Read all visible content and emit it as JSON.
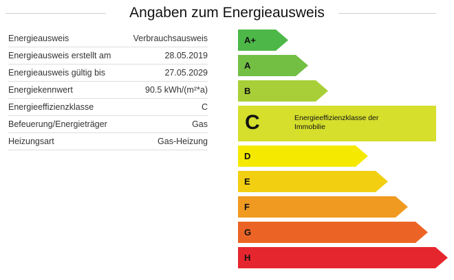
{
  "header": {
    "title": "Angaben zum Energieausweis"
  },
  "details": {
    "rows": [
      {
        "label": "Energieausweis",
        "value": "Verbrauchsausweis"
      },
      {
        "label": "Energieausweis erstellt am",
        "value": "28.05.2019"
      },
      {
        "label": "Energieausweis gültig bis",
        "value": "27.05.2029"
      },
      {
        "label": "Energiekennwert",
        "value": "90.5 kWh/(m²*a)"
      },
      {
        "label": "Energieeffizienzklasse",
        "value": "C"
      },
      {
        "label": "Befeuerung/Energieträger",
        "value": "Gas"
      },
      {
        "label": "Heizungsart",
        "value": "Gas-Heizung"
      }
    ]
  },
  "scale": {
    "classes": [
      {
        "label": "A+",
        "color": "#4db848"
      },
      {
        "label": "A",
        "color": "#72bf44"
      },
      {
        "label": "B",
        "color": "#a8cf38"
      },
      {
        "label": "C",
        "color": "#d5df2c",
        "current": true
      },
      {
        "label": "D",
        "color": "#f5e900"
      },
      {
        "label": "E",
        "color": "#f3cf12"
      },
      {
        "label": "F",
        "color": "#f09a21"
      },
      {
        "label": "G",
        "color": "#ec6425"
      },
      {
        "label": "H",
        "color": "#e6262e"
      }
    ],
    "current_class": "C",
    "current_description": "Energieeffizienzklasse der Immobilie"
  }
}
